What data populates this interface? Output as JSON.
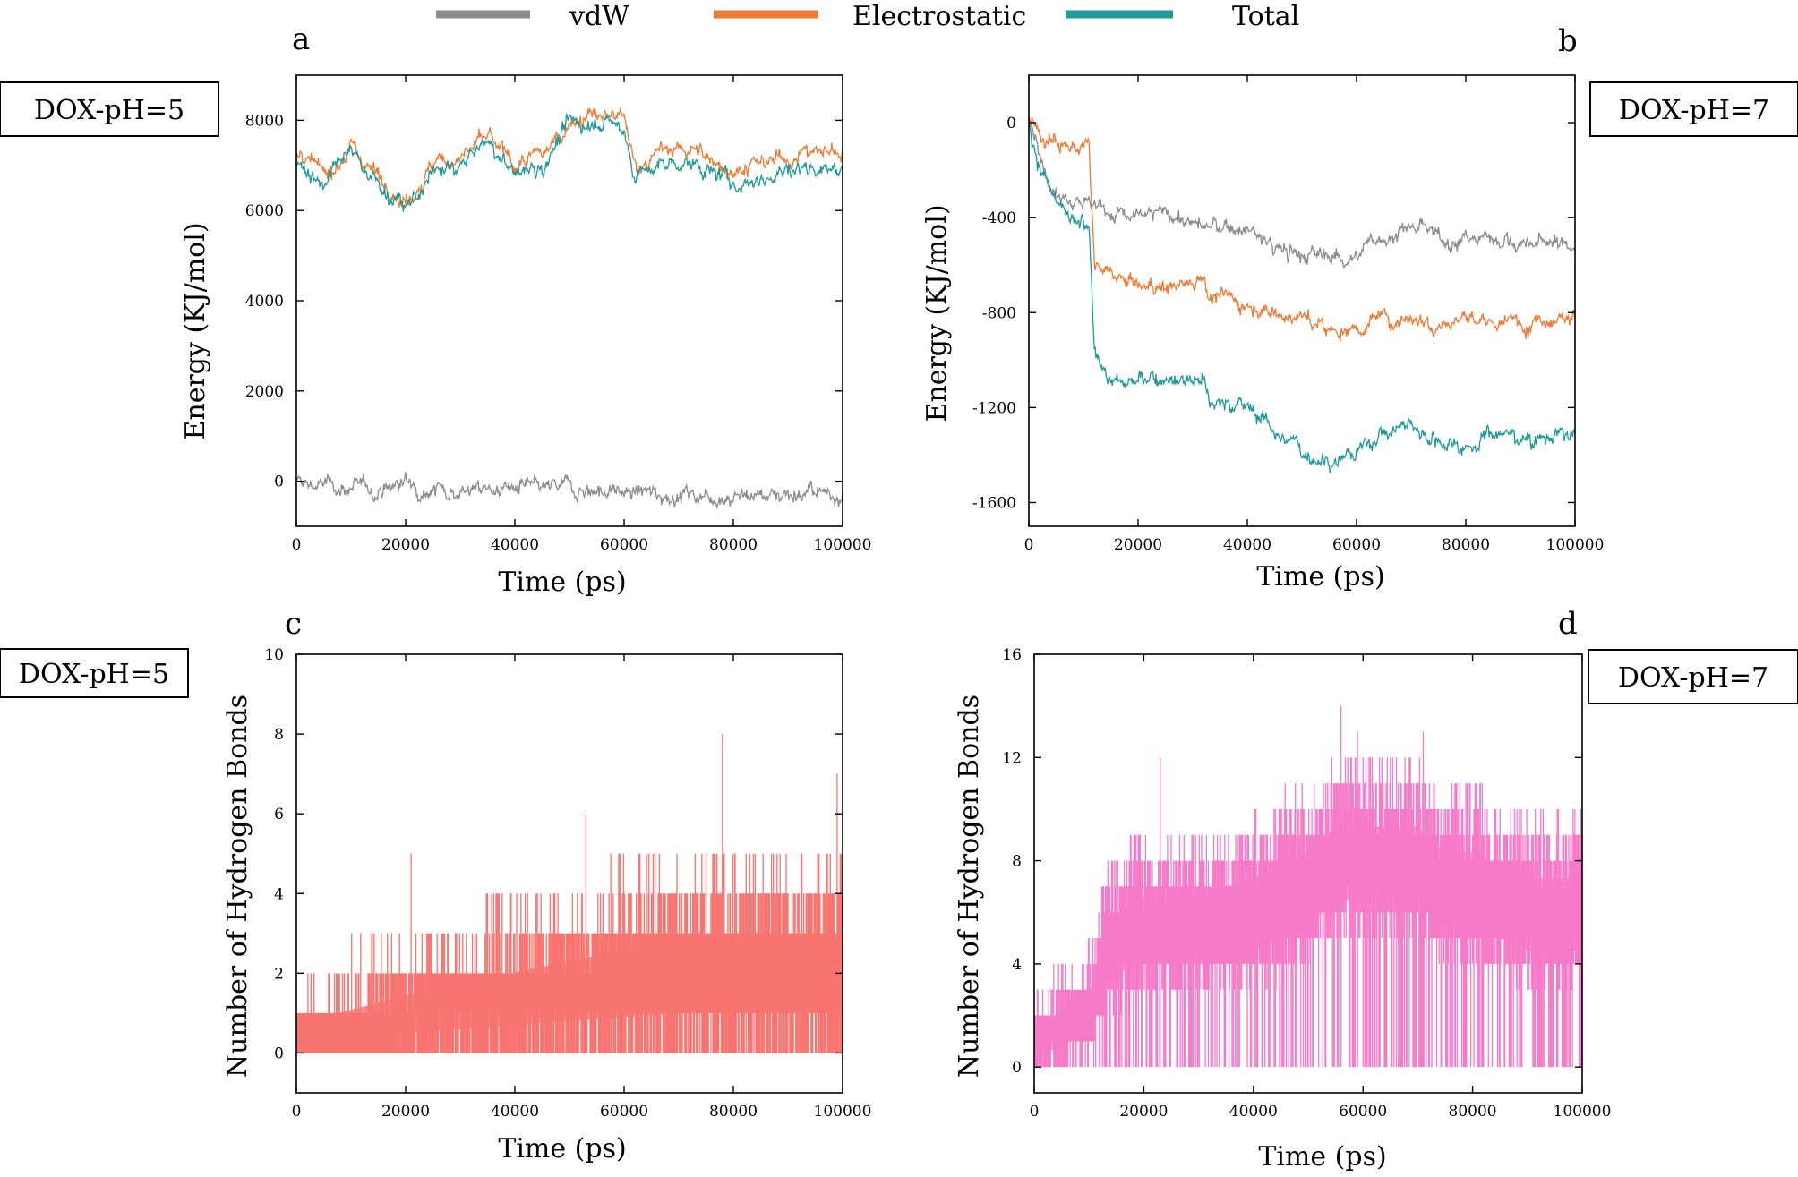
{
  "legend": {
    "items": [
      {
        "label": "vdW",
        "color": "#8c8c8c"
      },
      {
        "label": "Electrostatic",
        "color": "#f07a32"
      },
      {
        "label": "Total",
        "color": "#1e9a9a"
      }
    ]
  },
  "chart_data": [
    {
      "panel": "a",
      "condition_label": "DOX-pH=5",
      "type": "line",
      "xlabel": "Time (ps)",
      "ylabel": "Energy (KJ/mol)",
      "xlim": [
        0,
        100000
      ],
      "ylim": [
        -1000,
        9000
      ],
      "xticks": [
        0,
        20000,
        40000,
        60000,
        80000,
        100000
      ],
      "yticks": [
        0,
        2000,
        4000,
        6000,
        8000
      ],
      "x": [
        0,
        5000,
        10000,
        15000,
        20000,
        25000,
        30000,
        35000,
        40000,
        45000,
        50000,
        55000,
        60000,
        62000,
        65000,
        70000,
        75000,
        80000,
        85000,
        90000,
        95000,
        100000
      ],
      "series": [
        {
          "name": "vdW",
          "color": "#8c8c8c",
          "values": [
            -50,
            -80,
            -150,
            -200,
            -30,
            -150,
            -200,
            -180,
            -150,
            -200,
            -120,
            -200,
            -250,
            -250,
            -280,
            -300,
            -300,
            -320,
            -300,
            -250,
            -280,
            -250
          ]
        },
        {
          "name": "Electrostatic",
          "color": "#f07a32",
          "values": [
            7200,
            6800,
            7400,
            6800,
            6200,
            7000,
            7200,
            7600,
            7000,
            7200,
            8000,
            8100,
            8000,
            7000,
            7200,
            7400,
            7200,
            6900,
            7000,
            7200,
            7300,
            7300
          ]
        },
        {
          "name": "Total",
          "color": "#1e9a9a",
          "values": [
            7100,
            6600,
            7300,
            6600,
            6000,
            6800,
            7000,
            7500,
            6800,
            7000,
            7900,
            8000,
            7800,
            6800,
            6900,
            7100,
            6900,
            6600,
            6700,
            6900,
            7000,
            6900
          ]
        }
      ]
    },
    {
      "panel": "b",
      "condition_label": "DOX-pH=7",
      "type": "line",
      "xlabel": "Time (ps)",
      "ylabel": "Energy (KJ/mol)",
      "xlim": [
        0,
        100000
      ],
      "ylim": [
        -1700,
        200
      ],
      "xticks": [
        0,
        20000,
        40000,
        60000,
        80000,
        100000
      ],
      "yticks": [
        0,
        -400,
        -800,
        -1200,
        -1600
      ],
      "x": [
        0,
        2000,
        6000,
        11000,
        12000,
        15000,
        20000,
        25000,
        30000,
        32000,
        33000,
        40000,
        45000,
        50000,
        55000,
        60000,
        65000,
        70000,
        75000,
        80000,
        85000,
        90000,
        95000,
        100000
      ],
      "series": [
        {
          "name": "vdW",
          "color": "#8c8c8c",
          "values": [
            0,
            -150,
            -300,
            -330,
            -340,
            -380,
            -400,
            -380,
            -420,
            -450,
            -440,
            -450,
            -530,
            -560,
            -560,
            -560,
            -480,
            -440,
            -480,
            -500,
            -470,
            -520,
            -500,
            -520
          ]
        },
        {
          "name": "Electrostatic",
          "color": "#f07a32",
          "values": [
            0,
            -40,
            -80,
            -120,
            -600,
            -650,
            -690,
            -690,
            -670,
            -640,
            -720,
            -760,
            -800,
            -820,
            -880,
            -860,
            -820,
            -820,
            -840,
            -820,
            -850,
            -840,
            -820,
            -800
          ]
        },
        {
          "name": "Total",
          "color": "#1e9a9a",
          "values": [
            0,
            -200,
            -380,
            -460,
            -950,
            -1080,
            -1100,
            -1060,
            -1080,
            -1060,
            -1180,
            -1190,
            -1290,
            -1390,
            -1420,
            -1390,
            -1300,
            -1270,
            -1340,
            -1360,
            -1300,
            -1330,
            -1320,
            -1310
          ]
        }
      ]
    },
    {
      "panel": "c",
      "condition_label": "DOX-pH=5",
      "type": "line",
      "xlabel": "Time (ps)",
      "ylabel": "Number of Hydrogen Bonds",
      "xlim": [
        0,
        100000
      ],
      "ylim": [
        -1,
        10
      ],
      "xticks": [
        0,
        20000,
        40000,
        60000,
        80000,
        100000
      ],
      "yticks": [
        0,
        2,
        4,
        6,
        8,
        10
      ],
      "color": "#f77470",
      "x": [
        0,
        20000,
        45000,
        70000,
        100000
      ],
      "band_min": [
        0,
        0,
        0,
        0,
        0
      ],
      "band_max": [
        1,
        2,
        3,
        4,
        4
      ],
      "peaks": [
        {
          "x": 21000,
          "y": 5
        },
        {
          "x": 53000,
          "y": 6
        },
        {
          "x": 78000,
          "y": 8
        },
        {
          "x": 99000,
          "y": 7
        }
      ]
    },
    {
      "panel": "d",
      "condition_label": "DOX-pH=7",
      "type": "line",
      "xlabel": "Time (ps)",
      "ylabel": "Number of Hydrogen Bonds",
      "xlim": [
        0,
        100000
      ],
      "ylim": [
        -1,
        16
      ],
      "xticks": [
        0,
        20000,
        40000,
        60000,
        80000,
        100000
      ],
      "yticks": [
        0,
        4,
        8,
        12,
        16
      ],
      "color": "#f77ac8",
      "x": [
        0,
        5000,
        11000,
        13000,
        20000,
        30000,
        40000,
        50000,
        55000,
        60000,
        70000,
        75000,
        80000,
        90000,
        100000
      ],
      "band_min": [
        0,
        0,
        1,
        2,
        3,
        3,
        3,
        4,
        5,
        5,
        5,
        4,
        4,
        3,
        3
      ],
      "band_max": [
        2,
        3,
        4,
        7,
        8,
        8,
        9,
        10,
        11,
        11,
        11,
        10,
        10,
        9,
        9
      ],
      "peaks": [
        {
          "x": 23000,
          "y": 12
        },
        {
          "x": 56000,
          "y": 14
        },
        {
          "x": 59000,
          "y": 13
        },
        {
          "x": 71000,
          "y": 13
        }
      ]
    }
  ]
}
